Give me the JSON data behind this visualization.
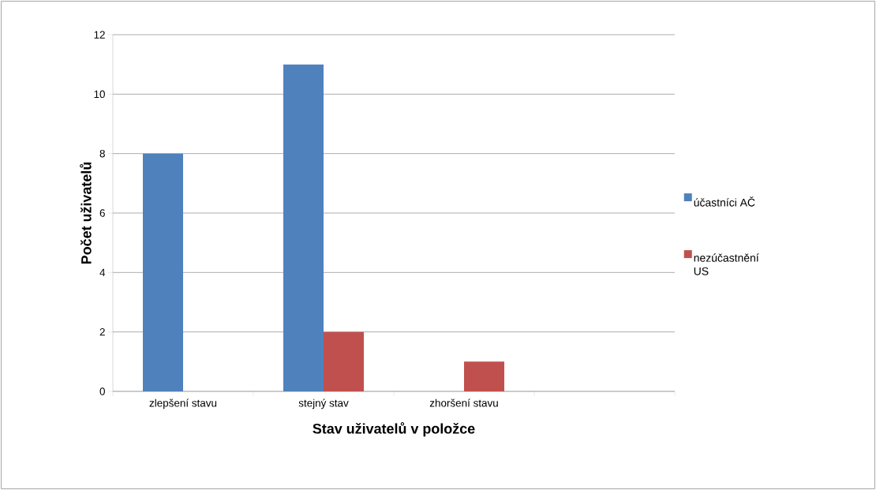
{
  "chart_data": {
    "type": "bar",
    "xlabel": "Stav uživatelů v položce",
    "ylabel": "Počet uživatelů",
    "categories": [
      "zlepšení stavu",
      "stejný stav",
      "zhoršení stavu",
      null
    ],
    "series": [
      {
        "name": "účastníci AČ",
        "color": "#4f81bd",
        "values": [
          8,
          11,
          null,
          null
        ]
      },
      {
        "name": "nezúčastnění US",
        "color": "#c0504d",
        "values": [
          null,
          2,
          1,
          null
        ]
      }
    ],
    "ylim": [
      0,
      12
    ],
    "yticks": [
      0,
      2,
      4,
      6,
      8,
      10,
      12
    ],
    "grid": "y",
    "legend": "right"
  }
}
